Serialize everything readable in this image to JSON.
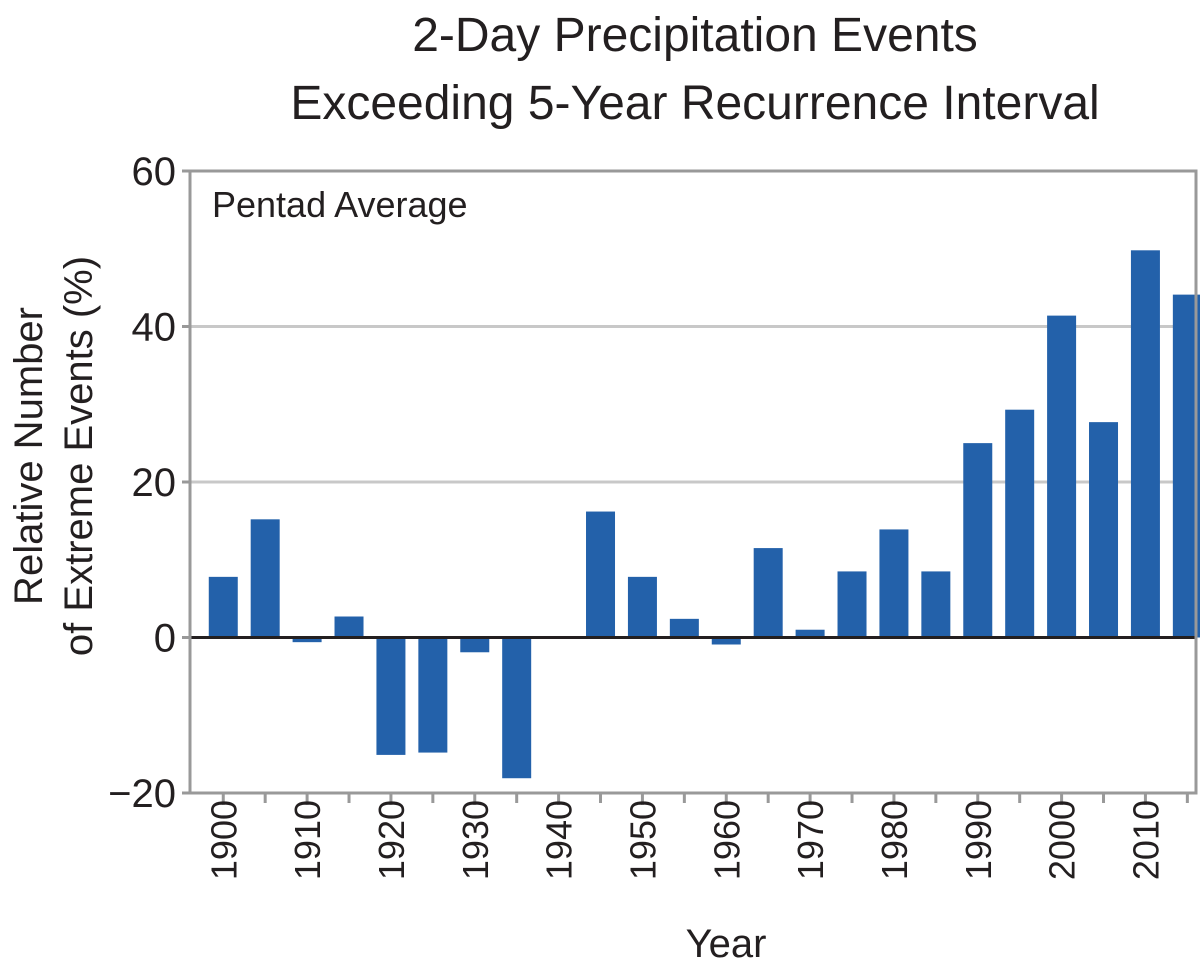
{
  "chart_data": {
    "type": "bar",
    "title": "2-Day Precipitation Events",
    "subtitle": "Exceeding 5-Year Recurrence Interval",
    "annotation": "Pentad Average",
    "xlabel": "Year",
    "ylabel_line1": "Relative Number",
    "ylabel_line2": "of Extreme Events (%)",
    "ylim": [
      -20,
      60
    ],
    "yticks": [
      "60",
      "40",
      "20",
      "0",
      "−20"
    ],
    "ytick_values": [
      60,
      40,
      20,
      0,
      -20
    ],
    "gridlines": [
      20,
      40
    ],
    "xlim": [
      1898,
      2018
    ],
    "xtick_labels": [
      "1900",
      "1910",
      "1920",
      "1930",
      "1940",
      "1950",
      "1960",
      "1970",
      "1980",
      "1990",
      "2000",
      "2010"
    ],
    "xtick_values": [
      1900,
      1910,
      1920,
      1930,
      1940,
      1950,
      1960,
      1970,
      1980,
      1990,
      2000,
      2010
    ],
    "minor_ticks": [
      1905,
      1915,
      1925,
      1935,
      1945,
      1955,
      1965,
      1975,
      1985,
      1995,
      2005,
      2015
    ],
    "categories": [
      1900,
      1905,
      1910,
      1915,
      1920,
      1925,
      1930,
      1935,
      1940,
      1945,
      1950,
      1955,
      1960,
      1965,
      1970,
      1975,
      1980,
      1985,
      1990,
      1995,
      2000,
      2005,
      2010,
      2015
    ],
    "values": [
      7.8,
      15.2,
      -0.6,
      2.7,
      -15.1,
      -14.8,
      -1.9,
      -18.1,
      0.0,
      16.2,
      7.8,
      2.4,
      -0.9,
      11.5,
      1.0,
      8.5,
      13.9,
      8.5,
      25.0,
      29.3,
      41.4,
      27.7,
      49.8,
      44.1
    ],
    "colors": {
      "bar": "#2361aa",
      "grid": "#c8c8c8",
      "frame": "#999999",
      "zero": "#231f20",
      "text": "#231f20"
    },
    "grid": true
  }
}
